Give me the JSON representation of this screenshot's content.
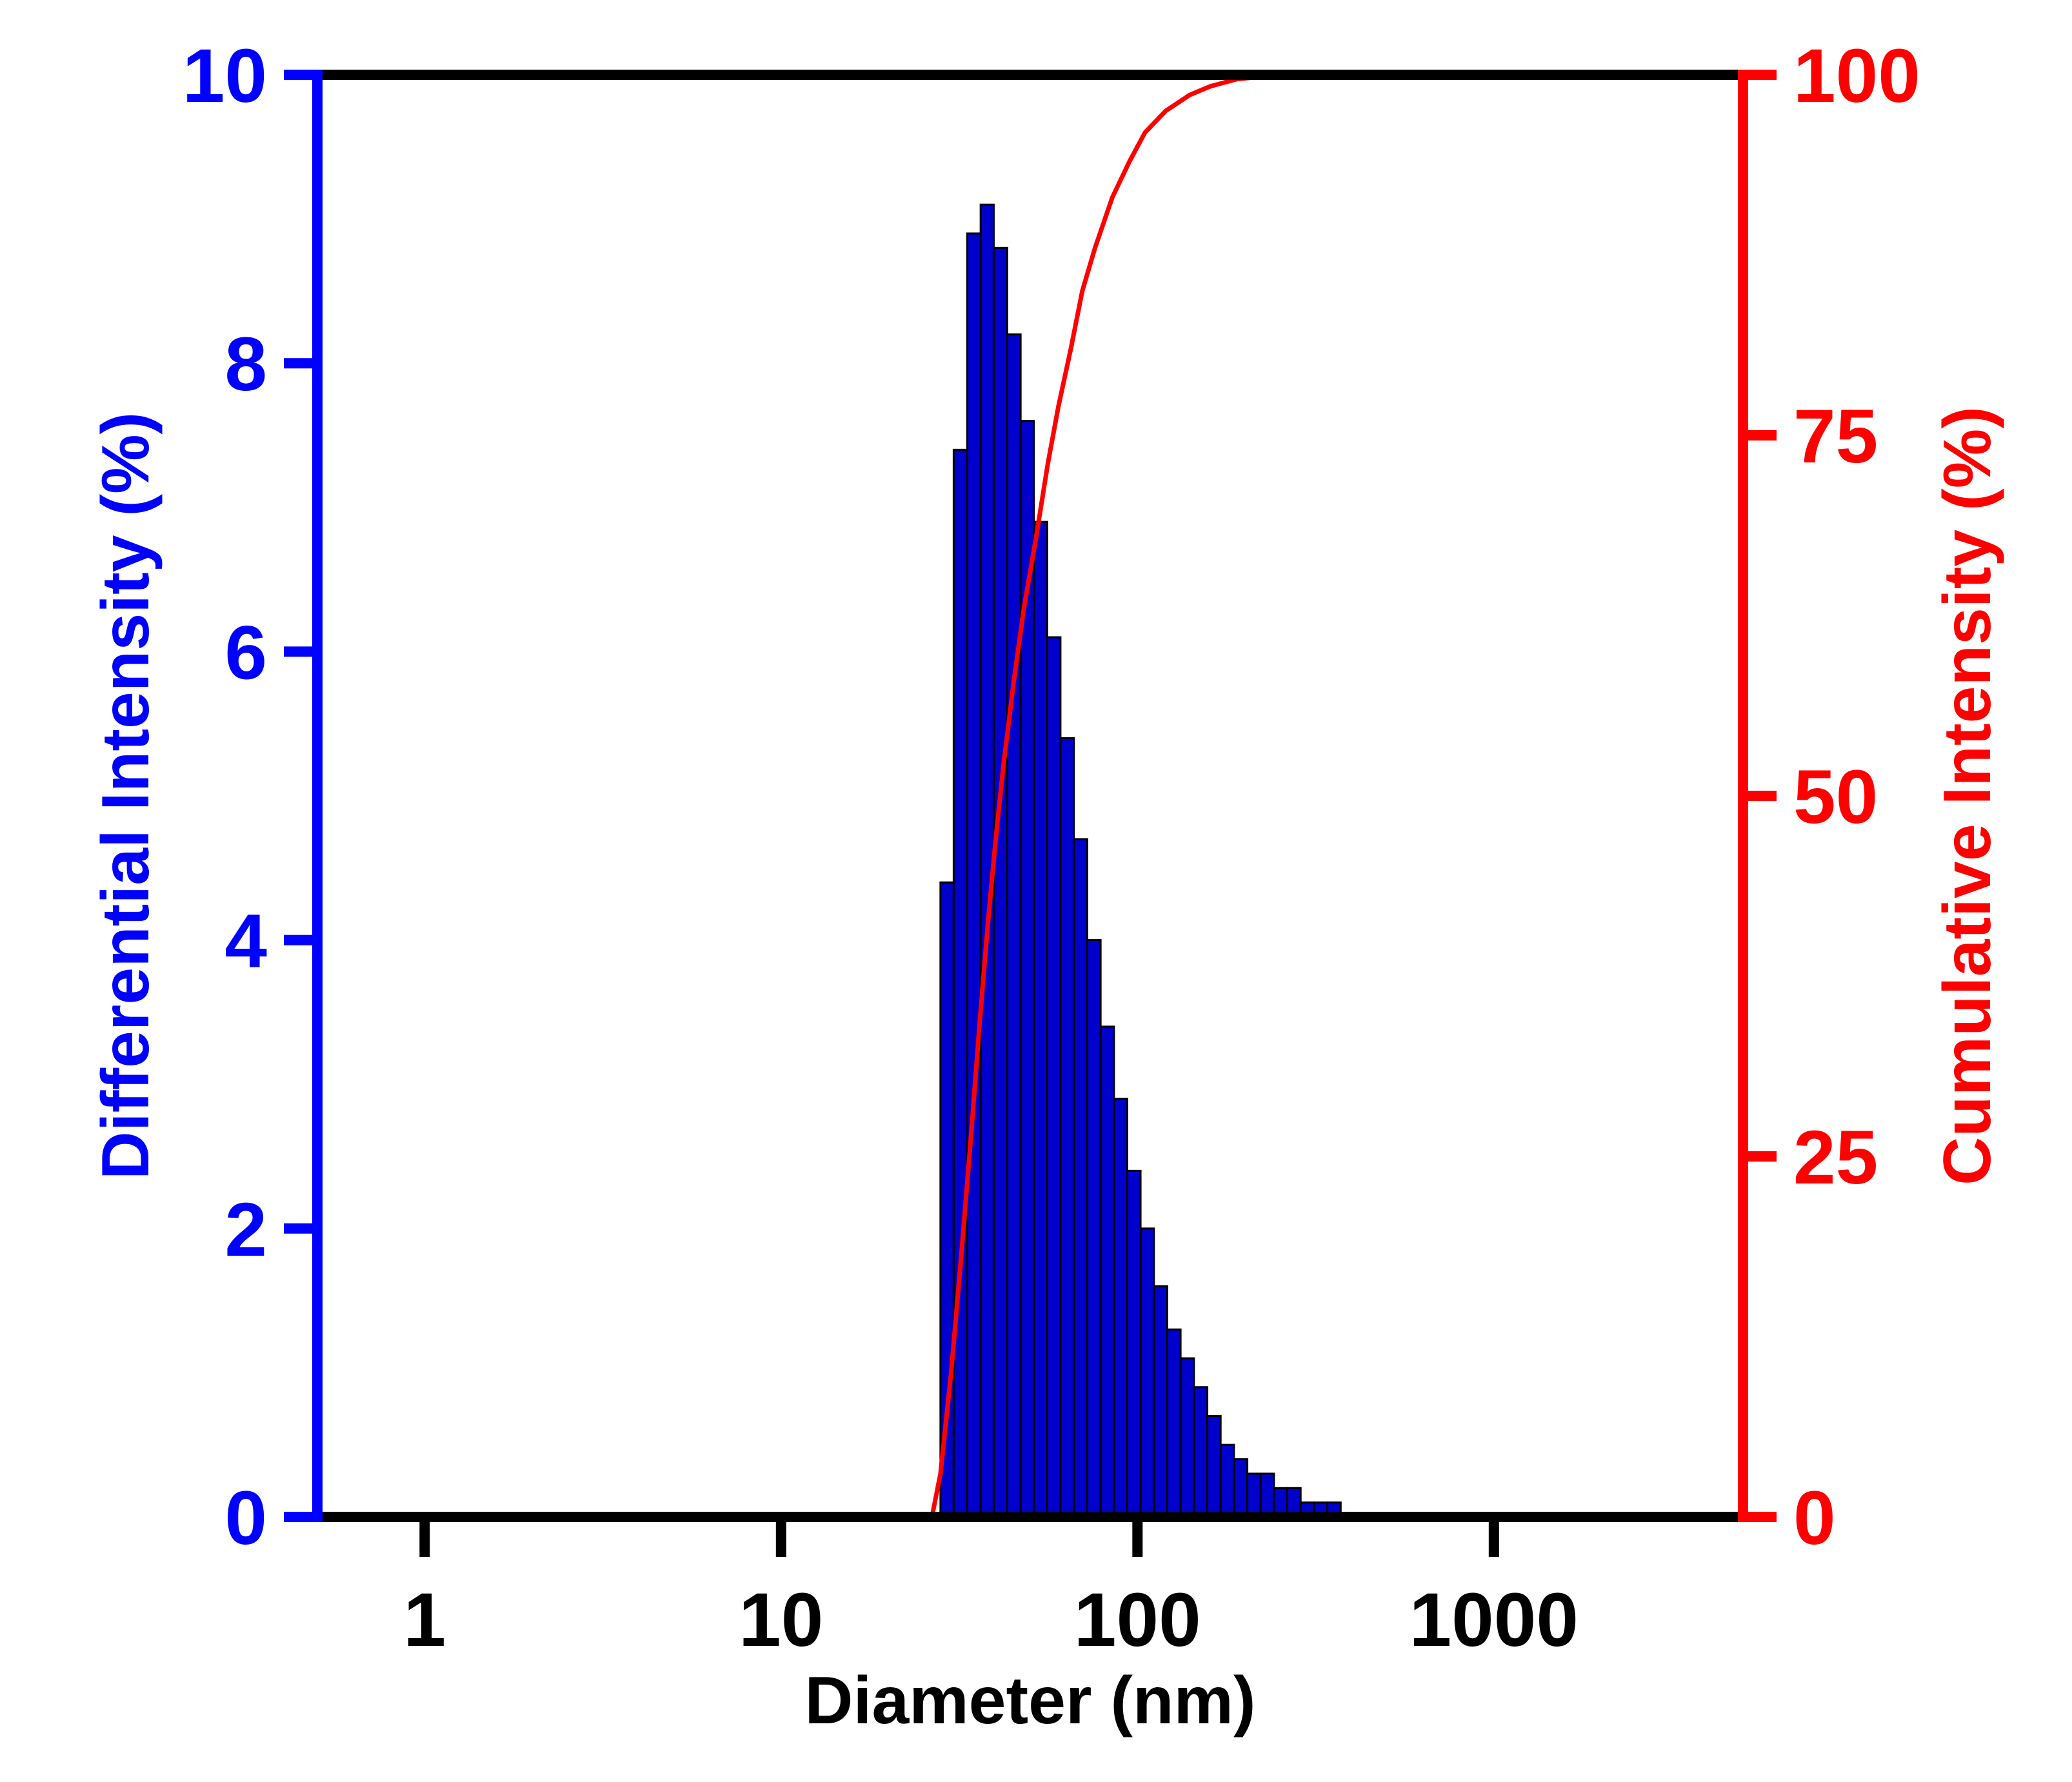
{
  "chart_data": {
    "type": "bar",
    "x_scale": "log",
    "xlim": [
      0.5,
      5000
    ],
    "xlabel": "Diameter (nm)",
    "x_ticks": [
      {
        "value": 1,
        "label": "1"
      },
      {
        "value": 10,
        "label": "10"
      },
      {
        "value": 100,
        "label": "100"
      },
      {
        "value": 1000,
        "label": "1000"
      }
    ],
    "y_left": {
      "label": "Differential Intensity (%)",
      "ylim": [
        0,
        10
      ],
      "color": "#0000ff",
      "ticks": [
        {
          "value": 0,
          "label": "0"
        },
        {
          "value": 2,
          "label": "2"
        },
        {
          "value": 4,
          "label": "4"
        },
        {
          "value": 6,
          "label": "6"
        },
        {
          "value": 8,
          "label": "8"
        },
        {
          "value": 10,
          "label": "10"
        }
      ]
    },
    "y_right": {
      "label": "Cumulative Intensity (%)",
      "ylim": [
        0,
        100
      ],
      "color": "#ff0000",
      "ticks": [
        {
          "value": 0,
          "label": "0"
        },
        {
          "value": 25,
          "label": "25"
        },
        {
          "value": 50,
          "label": "50"
        },
        {
          "value": 75,
          "label": "75"
        },
        {
          "value": 100,
          "label": "100"
        }
      ]
    },
    "bar_color": "#0000cc",
    "bar_edge": "#000000",
    "line_color": "#ff0000",
    "bars": [
      {
        "x0": 28.0,
        "x1": 30.5,
        "value": 4.4
      },
      {
        "x0": 30.5,
        "x1": 33.3,
        "value": 7.4
      },
      {
        "x0": 33.3,
        "x1": 36.3,
        "value": 8.9
      },
      {
        "x0": 36.3,
        "x1": 39.5,
        "value": 9.1
      },
      {
        "x0": 39.5,
        "x1": 43.1,
        "value": 8.8
      },
      {
        "x0": 43.1,
        "x1": 47.0,
        "value": 8.2
      },
      {
        "x0": 47.0,
        "x1": 51.2,
        "value": 7.6
      },
      {
        "x0": 51.2,
        "x1": 55.8,
        "value": 6.9
      },
      {
        "x0": 55.8,
        "x1": 60.8,
        "value": 6.1
      },
      {
        "x0": 60.8,
        "x1": 66.3,
        "value": 5.4
      },
      {
        "x0": 66.3,
        "x1": 72.3,
        "value": 4.7
      },
      {
        "x0": 72.3,
        "x1": 78.8,
        "value": 4.0
      },
      {
        "x0": 78.8,
        "x1": 85.9,
        "value": 3.4
      },
      {
        "x0": 85.9,
        "x1": 93.6,
        "value": 2.9
      },
      {
        "x0": 93.6,
        "x1": 102.0,
        "value": 2.4
      },
      {
        "x0": 102.0,
        "x1": 111.2,
        "value": 2.0
      },
      {
        "x0": 111.2,
        "x1": 121.2,
        "value": 1.6
      },
      {
        "x0": 121.2,
        "x1": 132.1,
        "value": 1.3
      },
      {
        "x0": 132.1,
        "x1": 144.0,
        "value": 1.1
      },
      {
        "x0": 144.0,
        "x1": 157.0,
        "value": 0.9
      },
      {
        "x0": 157.0,
        "x1": 171.1,
        "value": 0.7
      },
      {
        "x0": 171.1,
        "x1": 186.5,
        "value": 0.5
      },
      {
        "x0": 186.5,
        "x1": 203.3,
        "value": 0.4
      },
      {
        "x0": 203.3,
        "x1": 221.6,
        "value": 0.3
      },
      {
        "x0": 221.6,
        "x1": 241.5,
        "value": 0.3
      },
      {
        "x0": 241.5,
        "x1": 263.2,
        "value": 0.2
      },
      {
        "x0": 263.2,
        "x1": 286.9,
        "value": 0.2
      },
      {
        "x0": 286.9,
        "x1": 312.7,
        "value": 0.1
      },
      {
        "x0": 312.7,
        "x1": 340.9,
        "value": 0.1
      },
      {
        "x0": 340.9,
        "x1": 371.6,
        "value": 0.1
      }
    ],
    "cumulative": [
      [
        26.5,
        0
      ],
      [
        28,
        3
      ],
      [
        30,
        10
      ],
      [
        32,
        18
      ],
      [
        34,
        26
      ],
      [
        36,
        34
      ],
      [
        38,
        41
      ],
      [
        40,
        47
      ],
      [
        42,
        52
      ],
      [
        45,
        58
      ],
      [
        48,
        63
      ],
      [
        52,
        68
      ],
      [
        56,
        73
      ],
      [
        60,
        77
      ],
      [
        65,
        81
      ],
      [
        70,
        85
      ],
      [
        76,
        88
      ],
      [
        85,
        91.5
      ],
      [
        95,
        94
      ],
      [
        105,
        96
      ],
      [
        120,
        97.5
      ],
      [
        140,
        98.6
      ],
      [
        160,
        99.2
      ],
      [
        190,
        99.7
      ],
      [
        230,
        99.9
      ],
      [
        280,
        100
      ],
      [
        5000,
        100
      ]
    ]
  }
}
